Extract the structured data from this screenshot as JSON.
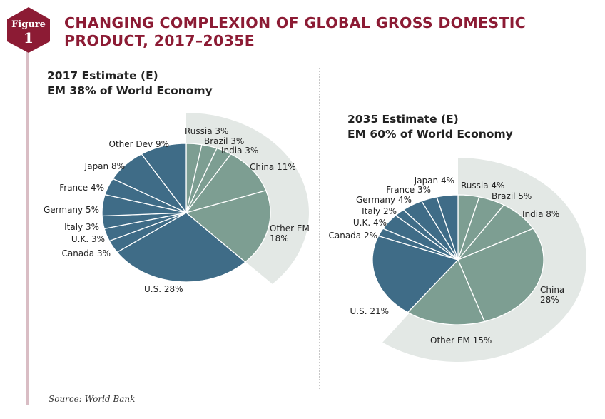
{
  "figure": {
    "label": "Figure",
    "number": "1"
  },
  "title_line1": "CHANGING COMPLEXION OF GLOBAL GROSS DOMESTIC",
  "title_line2": "PRODUCT, 2017–2035E",
  "source": "Source: World Bank",
  "colors": {
    "dm": "#3f6c87",
    "em": "#7d9e92",
    "highlight": "#e3e8e5",
    "title": "#8c1b34",
    "badge": "#8c1b34"
  },
  "chart_data": [
    {
      "type": "pie",
      "title": "2017 Estimate (E)",
      "subtitle": "EM 38% of World Economy",
      "slices": [
        {
          "label": "Russia",
          "value": 3,
          "group": "EM",
          "text": "Russia 3%"
        },
        {
          "label": "Brazil",
          "value": 3,
          "group": "EM",
          "text": "Brazil 3%"
        },
        {
          "label": "India",
          "value": 3,
          "group": "EM",
          "text": "India 3%"
        },
        {
          "label": "China",
          "value": 11,
          "group": "EM",
          "text": "China 11%"
        },
        {
          "label": "Other EM",
          "value": 18,
          "group": "EM",
          "text": "Other EM",
          "text2": "18%"
        },
        {
          "label": "U.S.",
          "value": 28,
          "group": "DM",
          "text": "U.S. 28%"
        },
        {
          "label": "Canada",
          "value": 3,
          "group": "DM",
          "text": "Canada 3%"
        },
        {
          "label": "U.K.",
          "value": 3,
          "group": "DM",
          "text": "U.K. 3%"
        },
        {
          "label": "Italy",
          "value": 3,
          "group": "DM",
          "text": "Italy 3%"
        },
        {
          "label": "Germany",
          "value": 5,
          "group": "DM",
          "text": "Germany 5%"
        },
        {
          "label": "France",
          "value": 4,
          "group": "DM",
          "text": "France 4%"
        },
        {
          "label": "Japan",
          "value": 8,
          "group": "DM",
          "text": "Japan 8%"
        },
        {
          "label": "Other Dev",
          "value": 9,
          "group": "DM",
          "text": "Other Dev 9%"
        }
      ]
    },
    {
      "type": "pie",
      "title": "2035 Estimate (E)",
      "subtitle": "EM 60% of World Economy",
      "slices": [
        {
          "label": "Russia",
          "value": 4,
          "group": "EM",
          "text": "Russia 4%"
        },
        {
          "label": "Brazil",
          "value": 5,
          "group": "EM",
          "text": "Brazil 5%"
        },
        {
          "label": "India",
          "value": 8,
          "group": "EM",
          "text": "India 8%"
        },
        {
          "label": "China",
          "value": 28,
          "group": "EM",
          "text": "China",
          "text2": "28%"
        },
        {
          "label": "Other EM",
          "value": 15,
          "group": "EM",
          "text": "Other EM 15%"
        },
        {
          "label": "U.S.",
          "value": 21,
          "group": "DM",
          "text": "U.S. 21%"
        },
        {
          "label": "Canada",
          "value": 2,
          "group": "DM",
          "text": "Canada 2%"
        },
        {
          "label": "U.K.",
          "value": 4,
          "group": "DM",
          "text": "U.K. 4%"
        },
        {
          "label": "Italy",
          "value": 2,
          "group": "DM",
          "text": "Italy 2%"
        },
        {
          "label": "Germany",
          "value": 4,
          "group": "DM",
          "text": "Germany 4%"
        },
        {
          "label": "France",
          "value": 3,
          "group": "DM",
          "text": "France 3%"
        },
        {
          "label": "Japan",
          "value": 4,
          "group": "DM",
          "text": "Japan 4%"
        }
      ]
    }
  ]
}
